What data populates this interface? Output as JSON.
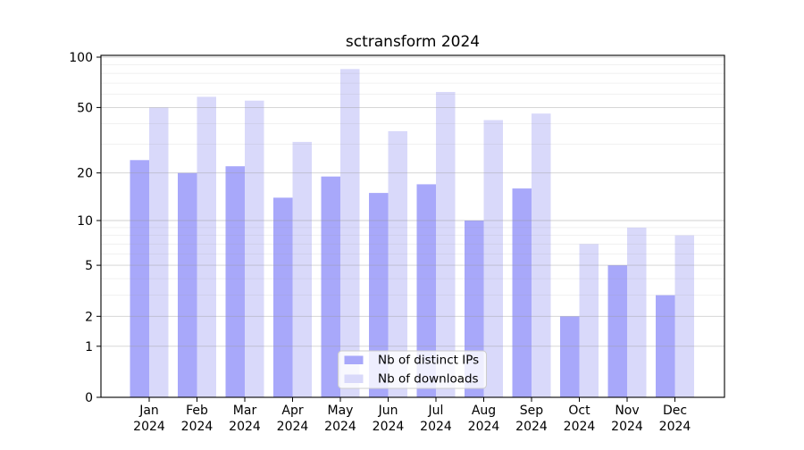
{
  "chart_data": {
    "type": "bar",
    "title": "sctransform 2024",
    "categories": [
      "Jan",
      "Feb",
      "Mar",
      "Apr",
      "May",
      "Jun",
      "Jul",
      "Aug",
      "Sep",
      "Oct",
      "Nov",
      "Dec"
    ],
    "category_year_label": "2024",
    "series": [
      {
        "name": "Nb of distinct IPs",
        "key": "distinct-ips",
        "color": "#a8a8fa",
        "values": [
          24,
          20,
          22,
          14,
          19,
          15,
          17,
          10,
          16,
          2,
          5,
          3
        ]
      },
      {
        "name": "Nb of downloads",
        "key": "downloads",
        "color": "#d9d9fa",
        "values": [
          50,
          58,
          55,
          31,
          85,
          36,
          62,
          42,
          46,
          7,
          9,
          8
        ]
      }
    ],
    "yscale": "log1p",
    "ylim": [
      0,
      100
    ],
    "y_ticks": [
      0,
      1,
      2,
      5,
      10,
      20,
      50,
      100
    ],
    "y_minor_gridlines": [
      3,
      4,
      6,
      7,
      8,
      9,
      30,
      40,
      60,
      70,
      80,
      90
    ],
    "grid": true,
    "legend_position": "lower center",
    "colors": {
      "spine": "#000000",
      "major_grid": "#999999",
      "minor_grid": "#999999",
      "legend_border": "#cccccc",
      "text": "#000000"
    }
  }
}
